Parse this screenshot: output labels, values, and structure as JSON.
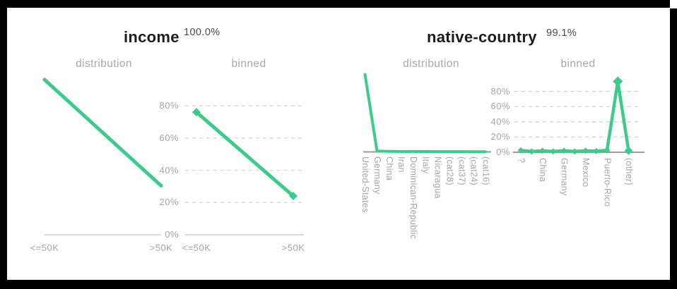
{
  "colors": {
    "accent_green": "#3dcb8b",
    "muted_text": "#a5a5a5",
    "title_text": "#1c1c1c",
    "percent_text": "#4a4a4a",
    "gridline": "#d4d4d4",
    "axis_light": "#c2c2c2",
    "axis_dark": "#999999",
    "background": "#ffffff",
    "frame": "#000000"
  },
  "panels": [
    {
      "title": "income",
      "percent": "100.0%",
      "sections": [
        {
          "label": "distribution"
        },
        {
          "label": "binned"
        }
      ]
    },
    {
      "title": "native-country",
      "percent": "99.1%",
      "sections": [
        {
          "label": "distribution"
        },
        {
          "label": "binned"
        }
      ]
    }
  ],
  "chart_data": [
    {
      "id": "income-distribution",
      "type": "line",
      "panel": "income",
      "section": "distribution",
      "categories": [
        "<=50K",
        ">50K"
      ],
      "values": [
        76,
        24
      ],
      "x_tick_labels": [
        "<=50K",
        ">50K"
      ],
      "y_axis_labeled": false,
      "grid": false
    },
    {
      "id": "income-binned",
      "type": "line",
      "panel": "income",
      "section": "binned",
      "categories": [
        "<=50K",
        ">50K"
      ],
      "values": [
        76,
        24
      ],
      "x_tick_labels": [
        "<=50K",
        ">50K"
      ],
      "y_ticks": [
        {
          "label": "80%",
          "value": 80
        },
        {
          "label": "60%",
          "value": 60
        },
        {
          "label": "40%",
          "value": 40
        },
        {
          "label": "20%",
          "value": 20
        },
        {
          "label": "0%",
          "value": 0
        }
      ],
      "ylim": [
        0,
        100
      ],
      "grid": true,
      "legend": "none"
    },
    {
      "id": "native-country-distribution",
      "type": "line",
      "panel": "native-country",
      "section": "distribution",
      "categories": [
        "United-States",
        "Germany",
        "China",
        "Iran",
        "Dominican-Republic",
        "Italy",
        "Nicaragua",
        "(cat28)",
        "(cat37)",
        "(cat24)",
        "(cat16)"
      ],
      "values": [
        91.5,
        1,
        0.6,
        0.5,
        0.4,
        0.4,
        0.3,
        0.3,
        0.3,
        0.2,
        0.2
      ],
      "x_tick_labels": [
        "United-States",
        "Germany",
        "China",
        "Iran",
        "Dominican-Republic",
        "Italy",
        "Nicaragua",
        "(cat28)",
        "(cat37)",
        "(cat24)",
        "(cat16)"
      ],
      "y_axis_labeled": false,
      "grid": false
    },
    {
      "id": "native-country-binned",
      "type": "line",
      "panel": "native-country",
      "section": "binned",
      "n_points": 11,
      "values": [
        2.5,
        1,
        2,
        1,
        2,
        1,
        2,
        1.5,
        2.5,
        93,
        2
      ],
      "x_tick_labels": [
        "?",
        "China",
        "Germany",
        "Mexico",
        "Puerto-Rico",
        "(other)"
      ],
      "x_tick_every": 2,
      "y_ticks": [
        {
          "label": "80%",
          "value": 80
        },
        {
          "label": "60%",
          "value": 60
        },
        {
          "label": "40%",
          "value": 40
        },
        {
          "label": "20%",
          "value": 20
        },
        {
          "label": "0%",
          "value": 0
        }
      ],
      "ylim": [
        0,
        100
      ],
      "grid": true,
      "legend": "none"
    }
  ]
}
